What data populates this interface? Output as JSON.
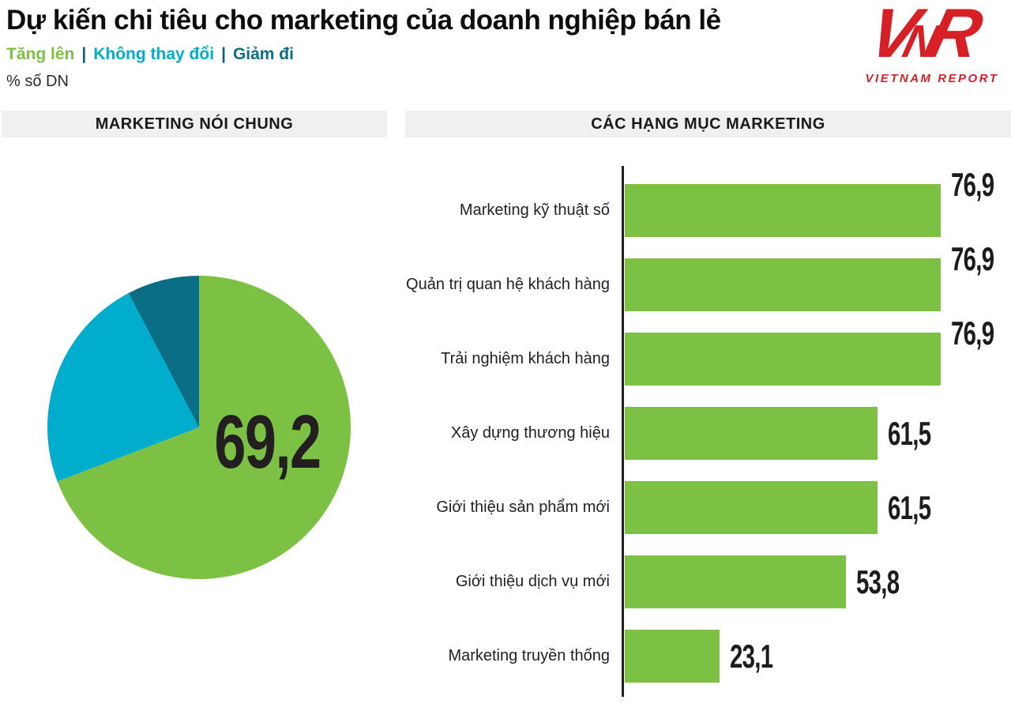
{
  "header": {
    "title": "Dự kiến chi tiêu cho marketing của doanh nghiệp bán lẻ",
    "unit_label": "% số DN",
    "legend": [
      {
        "label": "Tăng lên",
        "color": "#7CC143"
      },
      {
        "label": "Không thay đổi",
        "color": "#00ADCC"
      },
      {
        "label": "Giảm đi",
        "color": "#0A6E87"
      }
    ],
    "legend_separator": "|"
  },
  "logo": {
    "acronym": "VNR",
    "letters": [
      "V",
      "N",
      "R"
    ],
    "name": "VIETNAM REPORT",
    "color": "#D71F26"
  },
  "sections": {
    "left": "MARKETING NÓI CHUNG",
    "right": "CÁC HẠNG MỤC MARKETING"
  },
  "colors": {
    "green": "#7CC143",
    "cyan": "#00ADCC",
    "teal": "#0A6E87",
    "logo_red": "#D71F26",
    "near_black": "#231F20",
    "header_bg": "#F0F0F0"
  },
  "chart_data": [
    {
      "type": "pie",
      "title": "MARKETING NÓI CHUNG",
      "unit": "% số DN",
      "start_angle_deg": 0,
      "direction": "clockwise",
      "legend_position": "top-left-inline",
      "slices": [
        {
          "label": "Tăng lên",
          "value": 69.2,
          "display": "69,2",
          "color": "#7CC143",
          "show_label": true
        },
        {
          "label": "Không thay đổi",
          "value": 23.1,
          "display": "23,1",
          "color": "#00ADCC",
          "show_label": false
        },
        {
          "label": "Giảm đi",
          "value": 7.7,
          "display": "7,7",
          "color": "#0A6E87",
          "show_label": false
        }
      ]
    },
    {
      "type": "bar",
      "orientation": "horizontal",
      "title": "CÁC HẠNG MỤC MARKETING",
      "unit": "% số DN",
      "xlim": [
        0,
        83
      ],
      "grid": false,
      "series_color": "#7CC143",
      "rows": [
        {
          "label": "Marketing kỹ thuật số",
          "value": 76.9,
          "display": "76,9",
          "value_label_valign": "top"
        },
        {
          "label": "Quản trị quan hệ khách hàng",
          "value": 76.9,
          "display": "76,9",
          "value_label_valign": "top"
        },
        {
          "label": "Trải nghiệm khách hàng",
          "value": 76.9,
          "display": "76,9",
          "value_label_valign": "top"
        },
        {
          "label": "Xây dựng thương hiệu",
          "value": 61.5,
          "display": "61,5",
          "value_label_valign": "middle"
        },
        {
          "label": "Giới thiệu sản phẩm mới",
          "value": 61.5,
          "display": "61,5",
          "value_label_valign": "middle"
        },
        {
          "label": "Giới thiệu dịch vụ mới",
          "value": 53.8,
          "display": "53,8",
          "value_label_valign": "middle"
        },
        {
          "label": "Marketing truyền thống",
          "value": 23.1,
          "display": "23,1",
          "value_label_valign": "middle"
        }
      ]
    }
  ]
}
